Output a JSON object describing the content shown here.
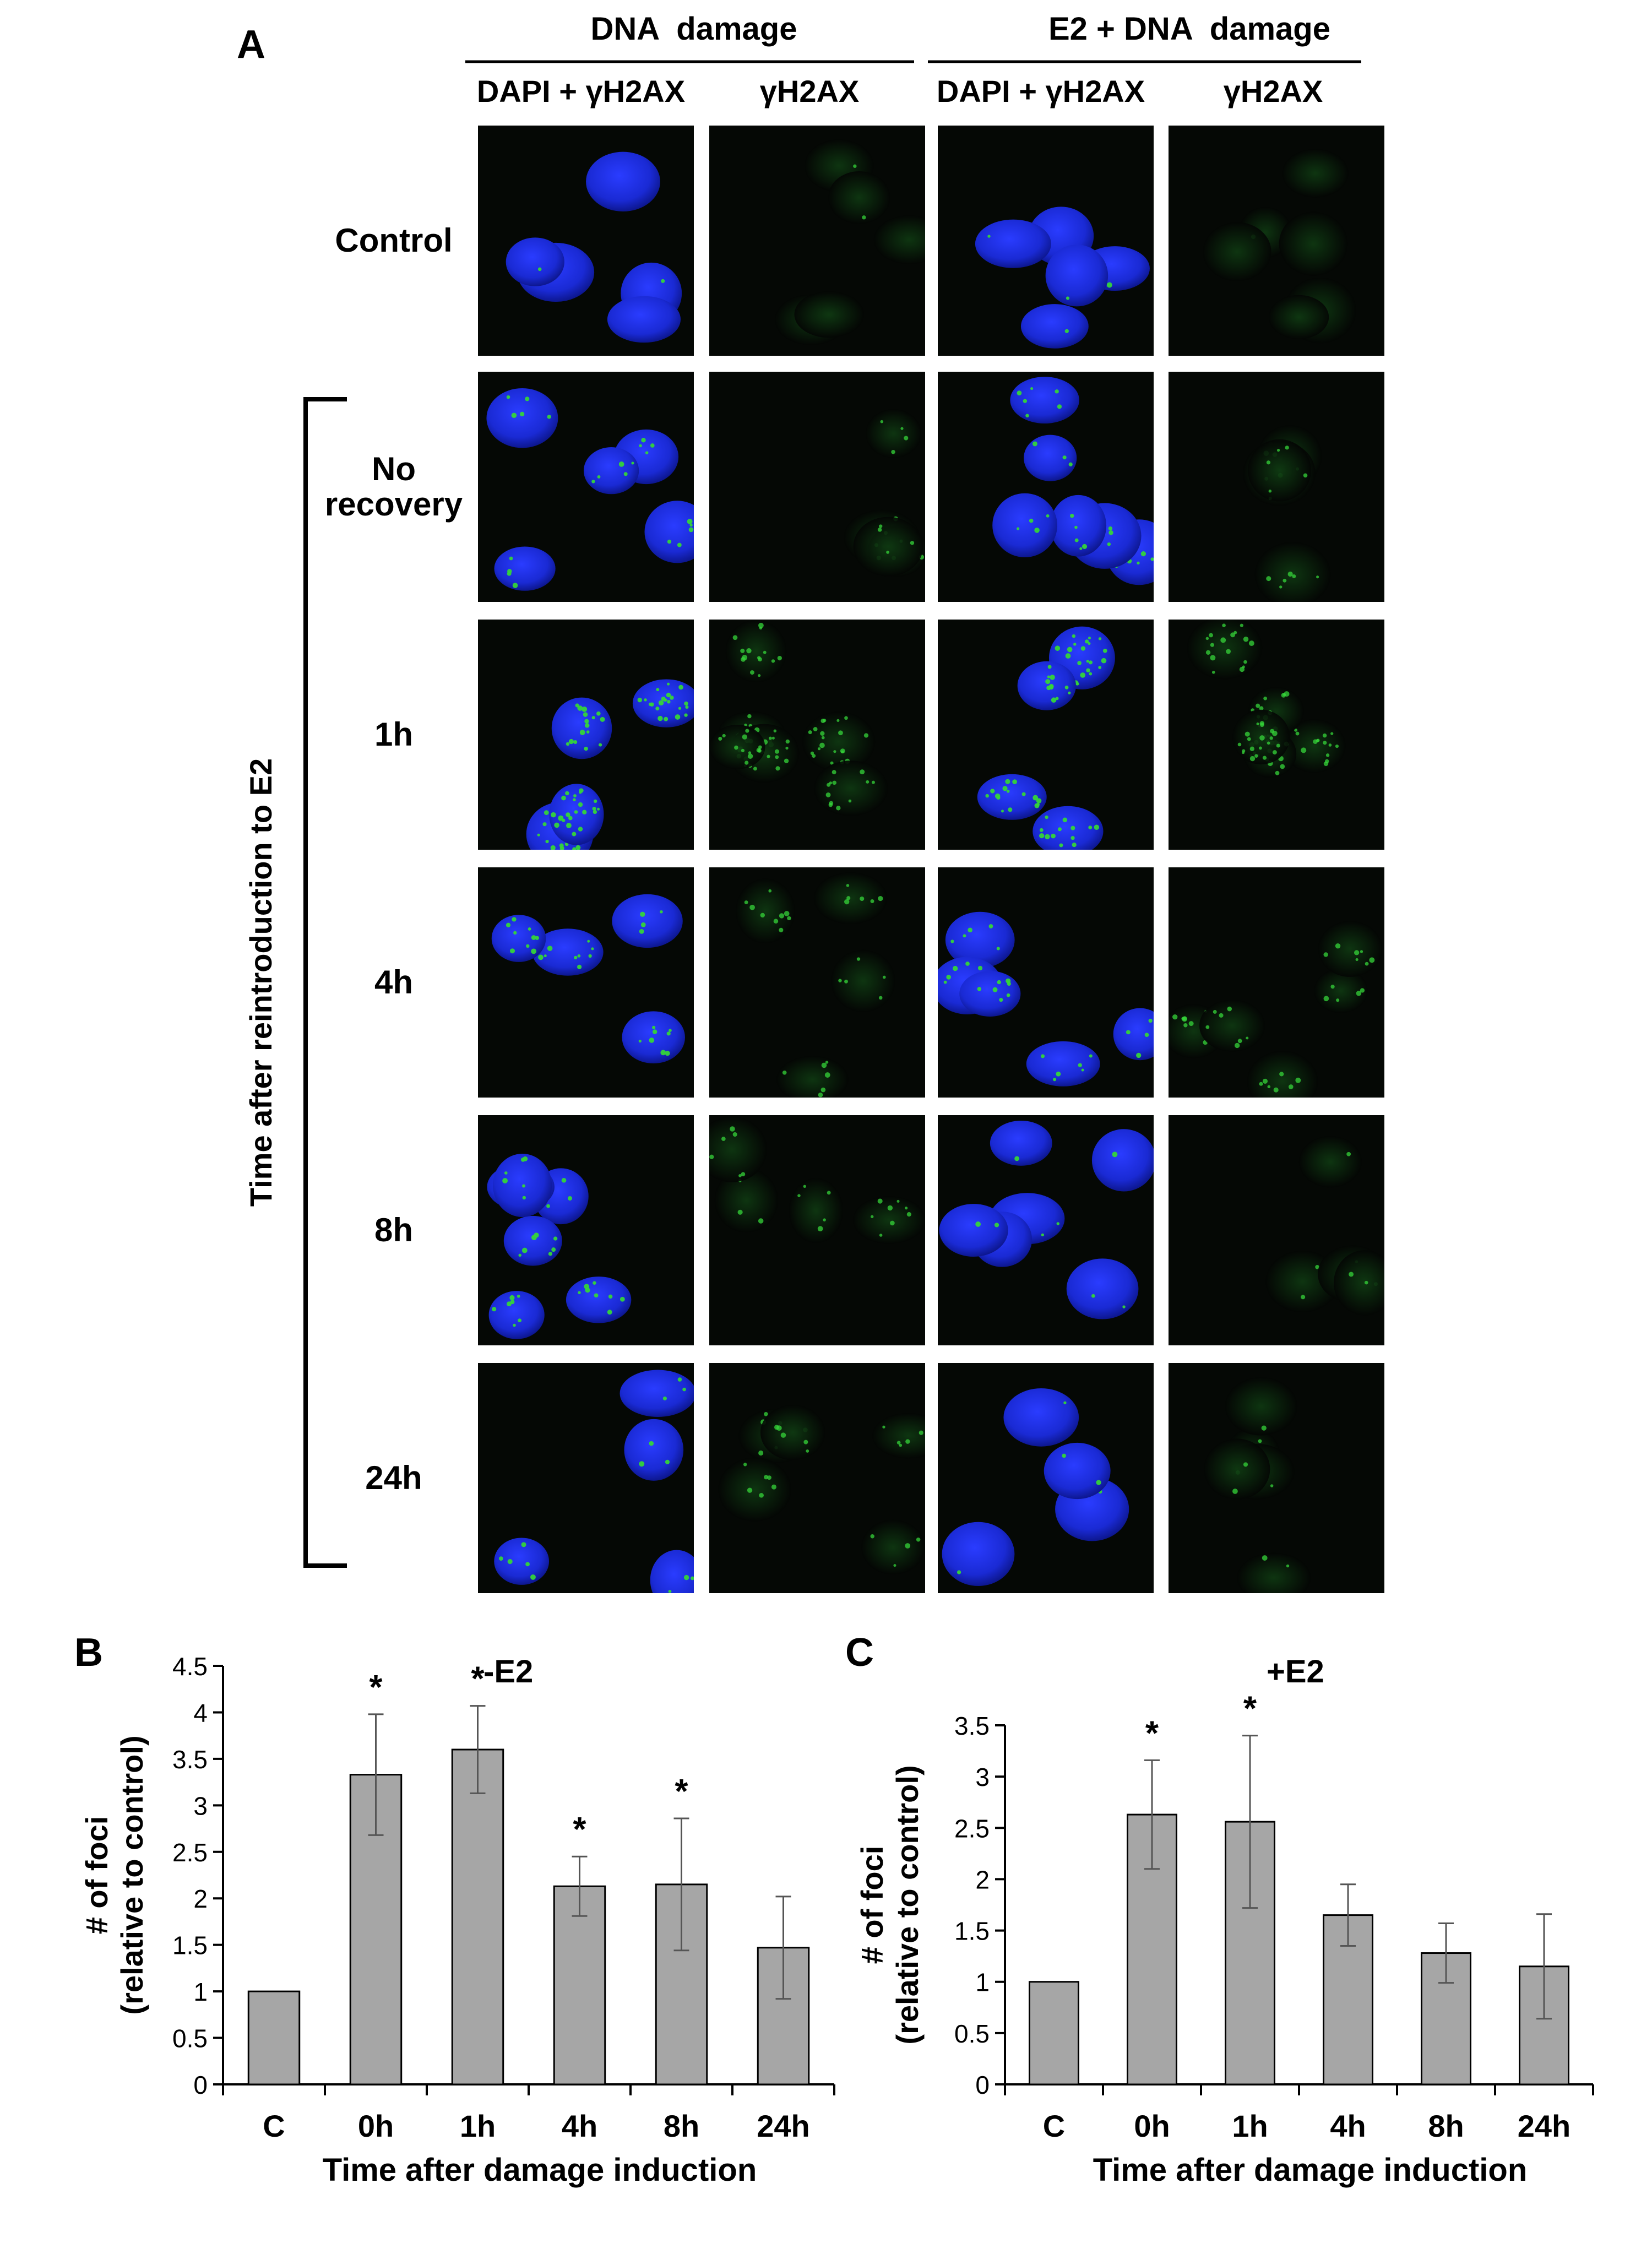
{
  "panel_a": {
    "letter": "A",
    "groups": [
      {
        "title": "DNA  damage",
        "columns": [
          "DAPI + γH2AX",
          "γH2AX"
        ]
      },
      {
        "title": "E2 + DNA  damage",
        "columns": [
          "DAPI + γH2AX",
          "γH2AX"
        ]
      }
    ],
    "row_labels": [
      [
        "Control"
      ],
      [
        "No",
        "recovery"
      ],
      [
        "1h"
      ],
      [
        "4h"
      ],
      [
        "8h"
      ],
      [
        "24h"
      ]
    ],
    "bracket_label": "Time after reintroduction to E2",
    "colors": {
      "nucleus": "#1a2ad4",
      "foci": "#35d43a",
      "background": "#050805"
    }
  },
  "chart_data": [
    {
      "letter": "B",
      "type": "bar",
      "title": "-E2",
      "categories": [
        "C",
        "0h",
        "1h",
        "4h",
        "8h",
        "24h"
      ],
      "values": [
        1.0,
        3.33,
        3.6,
        2.13,
        2.15,
        1.47
      ],
      "errors": [
        0,
        0.65,
        0.47,
        0.32,
        0.71,
        0.55
      ],
      "significant": [
        "",
        "*",
        "*",
        "*",
        "*",
        ""
      ],
      "xlabel": "Time after damage induction",
      "ylabel": [
        "# of foci",
        "(relative to control)"
      ],
      "ylim": [
        0,
        4.5
      ],
      "yticks": [
        "0",
        "0.5",
        "1",
        "1.5",
        "2",
        "2.5",
        "3",
        "3.5",
        "4",
        "4.5"
      ],
      "bar_color": "#a6a6a6",
      "grid": false
    },
    {
      "letter": "C",
      "type": "bar",
      "title": "+E2",
      "categories": [
        "C",
        "0h",
        "1h",
        "4h",
        "8h",
        "24h"
      ],
      "values": [
        1.0,
        2.63,
        2.56,
        1.65,
        1.28,
        1.15
      ],
      "errors": [
        0,
        0.53,
        0.84,
        0.3,
        0.29,
        0.51
      ],
      "significant": [
        "",
        "*",
        "*",
        "",
        "",
        ""
      ],
      "xlabel": "Time after damage induction",
      "ylabel": [
        "# of foci",
        "(relative to control)"
      ],
      "ylim": [
        0,
        3.5
      ],
      "yticks": [
        "0",
        "0.5",
        "1",
        "1.5",
        "2",
        "2.5",
        "3",
        "3.5"
      ],
      "bar_color": "#a6a6a6",
      "grid": false
    }
  ]
}
